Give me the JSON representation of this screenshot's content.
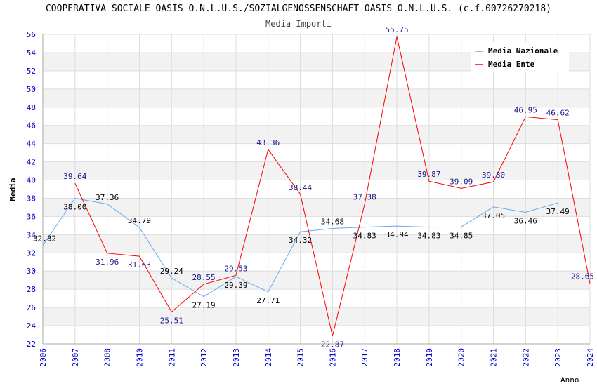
{
  "title": "COOPERATIVA SOCIALE OASIS O.N.L.U.S./SOZIALGENOSSENSCHAFT OASIS O.N.L.U.S. (c.f.00726270218)",
  "subtitle": "Media Importi",
  "chart_data": {
    "type": "line",
    "title": "Media Importi",
    "xlabel": "Anno",
    "ylabel": "Media",
    "ylim": [
      22,
      56
    ],
    "yticks": [
      22,
      24,
      26,
      28,
      30,
      32,
      34,
      36,
      38,
      40,
      42,
      44,
      46,
      48,
      50,
      52,
      54,
      56
    ],
    "categories": [
      "2006",
      "2007",
      "2008",
      "2010",
      "2011",
      "2012",
      "2013",
      "2014",
      "2015",
      "2016",
      "2017",
      "2018",
      "2019",
      "2020",
      "2021",
      "2022",
      "2023",
      "2024"
    ],
    "legend_position": "top-right",
    "grid": true,
    "series": [
      {
        "name": "Media Nazionale",
        "color": "#6aaaf0",
        "label_color": "#000000",
        "values": [
          32.82,
          38.0,
          37.36,
          34.79,
          29.24,
          27.19,
          29.39,
          27.71,
          34.32,
          34.68,
          34.83,
          34.94,
          34.83,
          34.85,
          37.05,
          36.46,
          37.49,
          null
        ]
      },
      {
        "name": "Media Ente",
        "color": "#ff0000",
        "label_color": "#1a1a8c",
        "values": [
          null,
          39.64,
          31.96,
          31.63,
          25.51,
          28.55,
          29.53,
          43.36,
          38.44,
          22.87,
          37.38,
          55.75,
          39.87,
          39.09,
          39.8,
          46.95,
          46.62,
          28.65
        ]
      }
    ]
  }
}
